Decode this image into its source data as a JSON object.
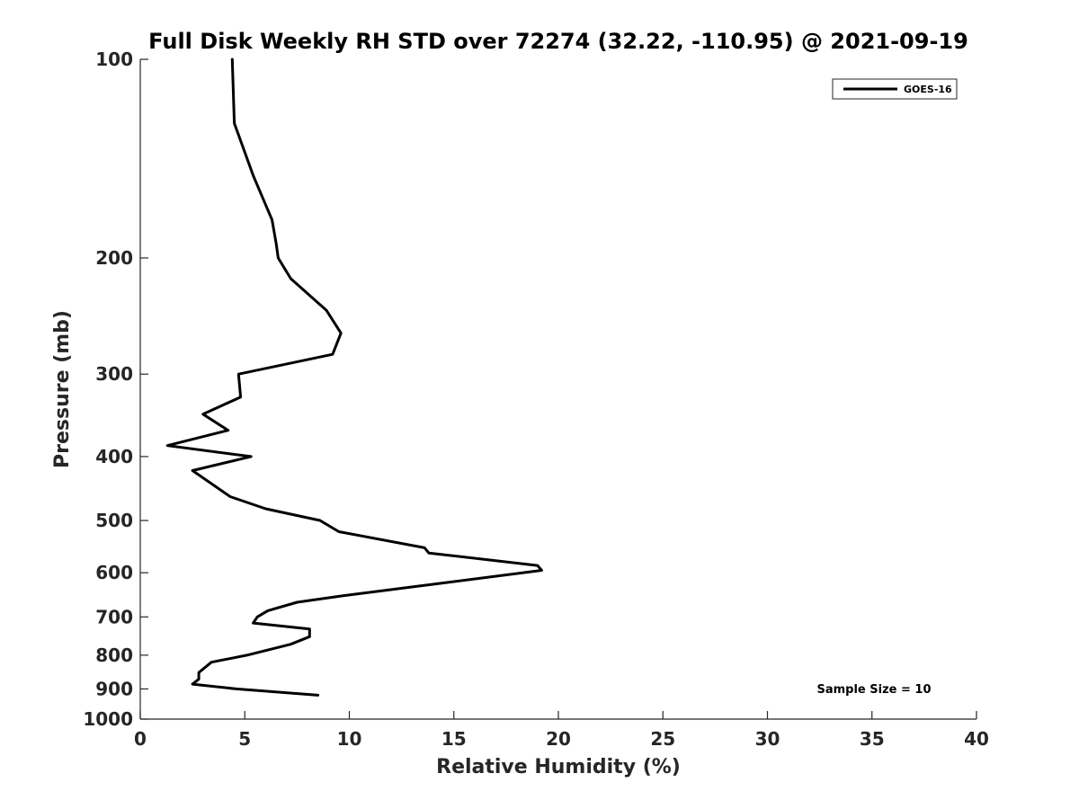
{
  "chart_data": {
    "type": "line",
    "title": "Full Disk Weekly RH STD over 72274 (32.22, -110.95) @ 2021-09-19",
    "xlabel": "Relative Humidity (%)",
    "ylabel": "Pressure (mb)",
    "xlim": [
      0,
      40
    ],
    "ylim": [
      100,
      1000
    ],
    "yscale": "log",
    "y_reversed": true,
    "grid": false,
    "x_ticks": [
      0,
      5,
      10,
      15,
      20,
      25,
      30,
      35,
      40
    ],
    "x_tick_labels": [
      "0",
      "5",
      "10",
      "15",
      "20",
      "25",
      "30",
      "35",
      "40"
    ],
    "y_ticks": [
      100,
      200,
      300,
      400,
      500,
      600,
      700,
      800,
      900,
      1000
    ],
    "y_tick_labels": [
      "100",
      "200",
      "300",
      "400",
      "500",
      "600",
      "700",
      "800",
      "900",
      "1000"
    ],
    "legend": {
      "position": "top-right",
      "entries": [
        "GOES-16"
      ]
    },
    "annotation": "Sample Size = 10",
    "series": [
      {
        "name": "GOES-16",
        "color": "#000000",
        "x": [
          4.4,
          4.5,
          5.4,
          6.3,
          6.5,
          6.6,
          7.2,
          8.9,
          9.6,
          9.2,
          4.7,
          4.8,
          3.0,
          4.2,
          1.3,
          5.3,
          2.5,
          4.3,
          6.0,
          8.6,
          9.5,
          13.6,
          13.8,
          19.0,
          19.2,
          14.8,
          9.7,
          7.5,
          6.1,
          5.6,
          5.4,
          8.1,
          8.1,
          7.2,
          5.1,
          3.4,
          2.8,
          2.8,
          2.5,
          4.6,
          8.5
        ],
        "y": [
          100,
          125,
          150,
          175,
          190,
          200,
          215,
          240,
          260,
          280,
          300,
          325,
          345,
          365,
          385,
          400,
          420,
          460,
          480,
          500,
          520,
          550,
          560,
          585,
          595,
          620,
          650,
          665,
          685,
          700,
          715,
          730,
          750,
          770,
          800,
          820,
          850,
          870,
          885,
          900,
          920
        ]
      }
    ]
  }
}
